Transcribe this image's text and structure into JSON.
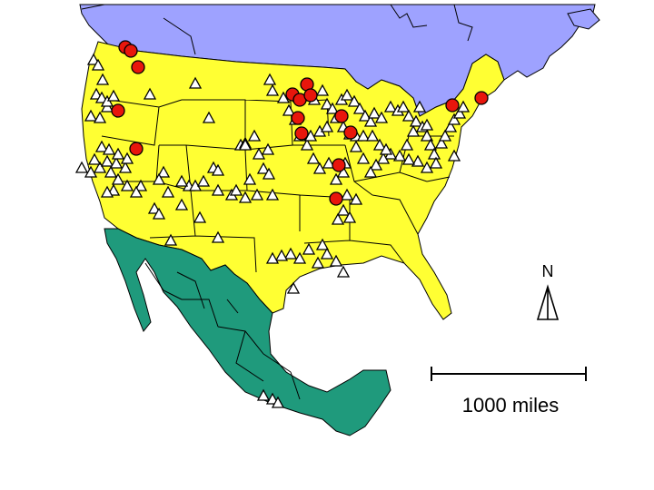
{
  "colors": {
    "water": "#ffffff",
    "canada": "#9ea2ff",
    "usa": "#ffff33",
    "mexico": "#1f9a7c",
    "border": "#000000",
    "marker_site": "#ffffff",
    "marker_highlight": "#e8160c"
  },
  "legend": {
    "north_label": "N",
    "scale_label": "1000 miles"
  },
  "icons": {
    "north_arrow": "north-arrow-icon",
    "site_marker": "triangle-marker-icon",
    "highlight_marker": "circle-marker-icon"
  }
}
